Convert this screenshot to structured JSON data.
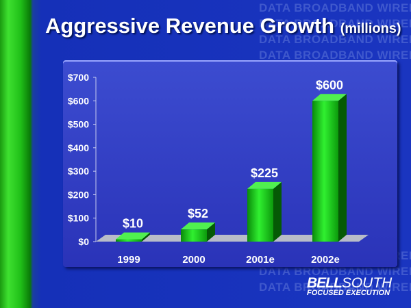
{
  "watermark": "DATA BROADBAND WIRELESS",
  "title": {
    "main": "Aggressive Revenue Growth",
    "sub": "(millions)"
  },
  "logo": {
    "brand_bold": "BELL",
    "brand_light": "SOUTH",
    "tagline": "FOCUSED EXECUTION"
  },
  "chart_data": {
    "type": "bar",
    "title": "Aggressive Revenue Growth (millions)",
    "categories": [
      "1999",
      "2000",
      "2001e",
      "2002e"
    ],
    "values": [
      10,
      52,
      225,
      600
    ],
    "data_labels": [
      "$10",
      "$52",
      "$225",
      "$600"
    ],
    "yticks": [
      "$0",
      "$100",
      "$200",
      "$300",
      "$400",
      "$500",
      "$600",
      "$700"
    ],
    "ylim": [
      0,
      700
    ],
    "xlabel": "",
    "ylabel": "",
    "bar_color": "#18d018",
    "grid": false
  }
}
